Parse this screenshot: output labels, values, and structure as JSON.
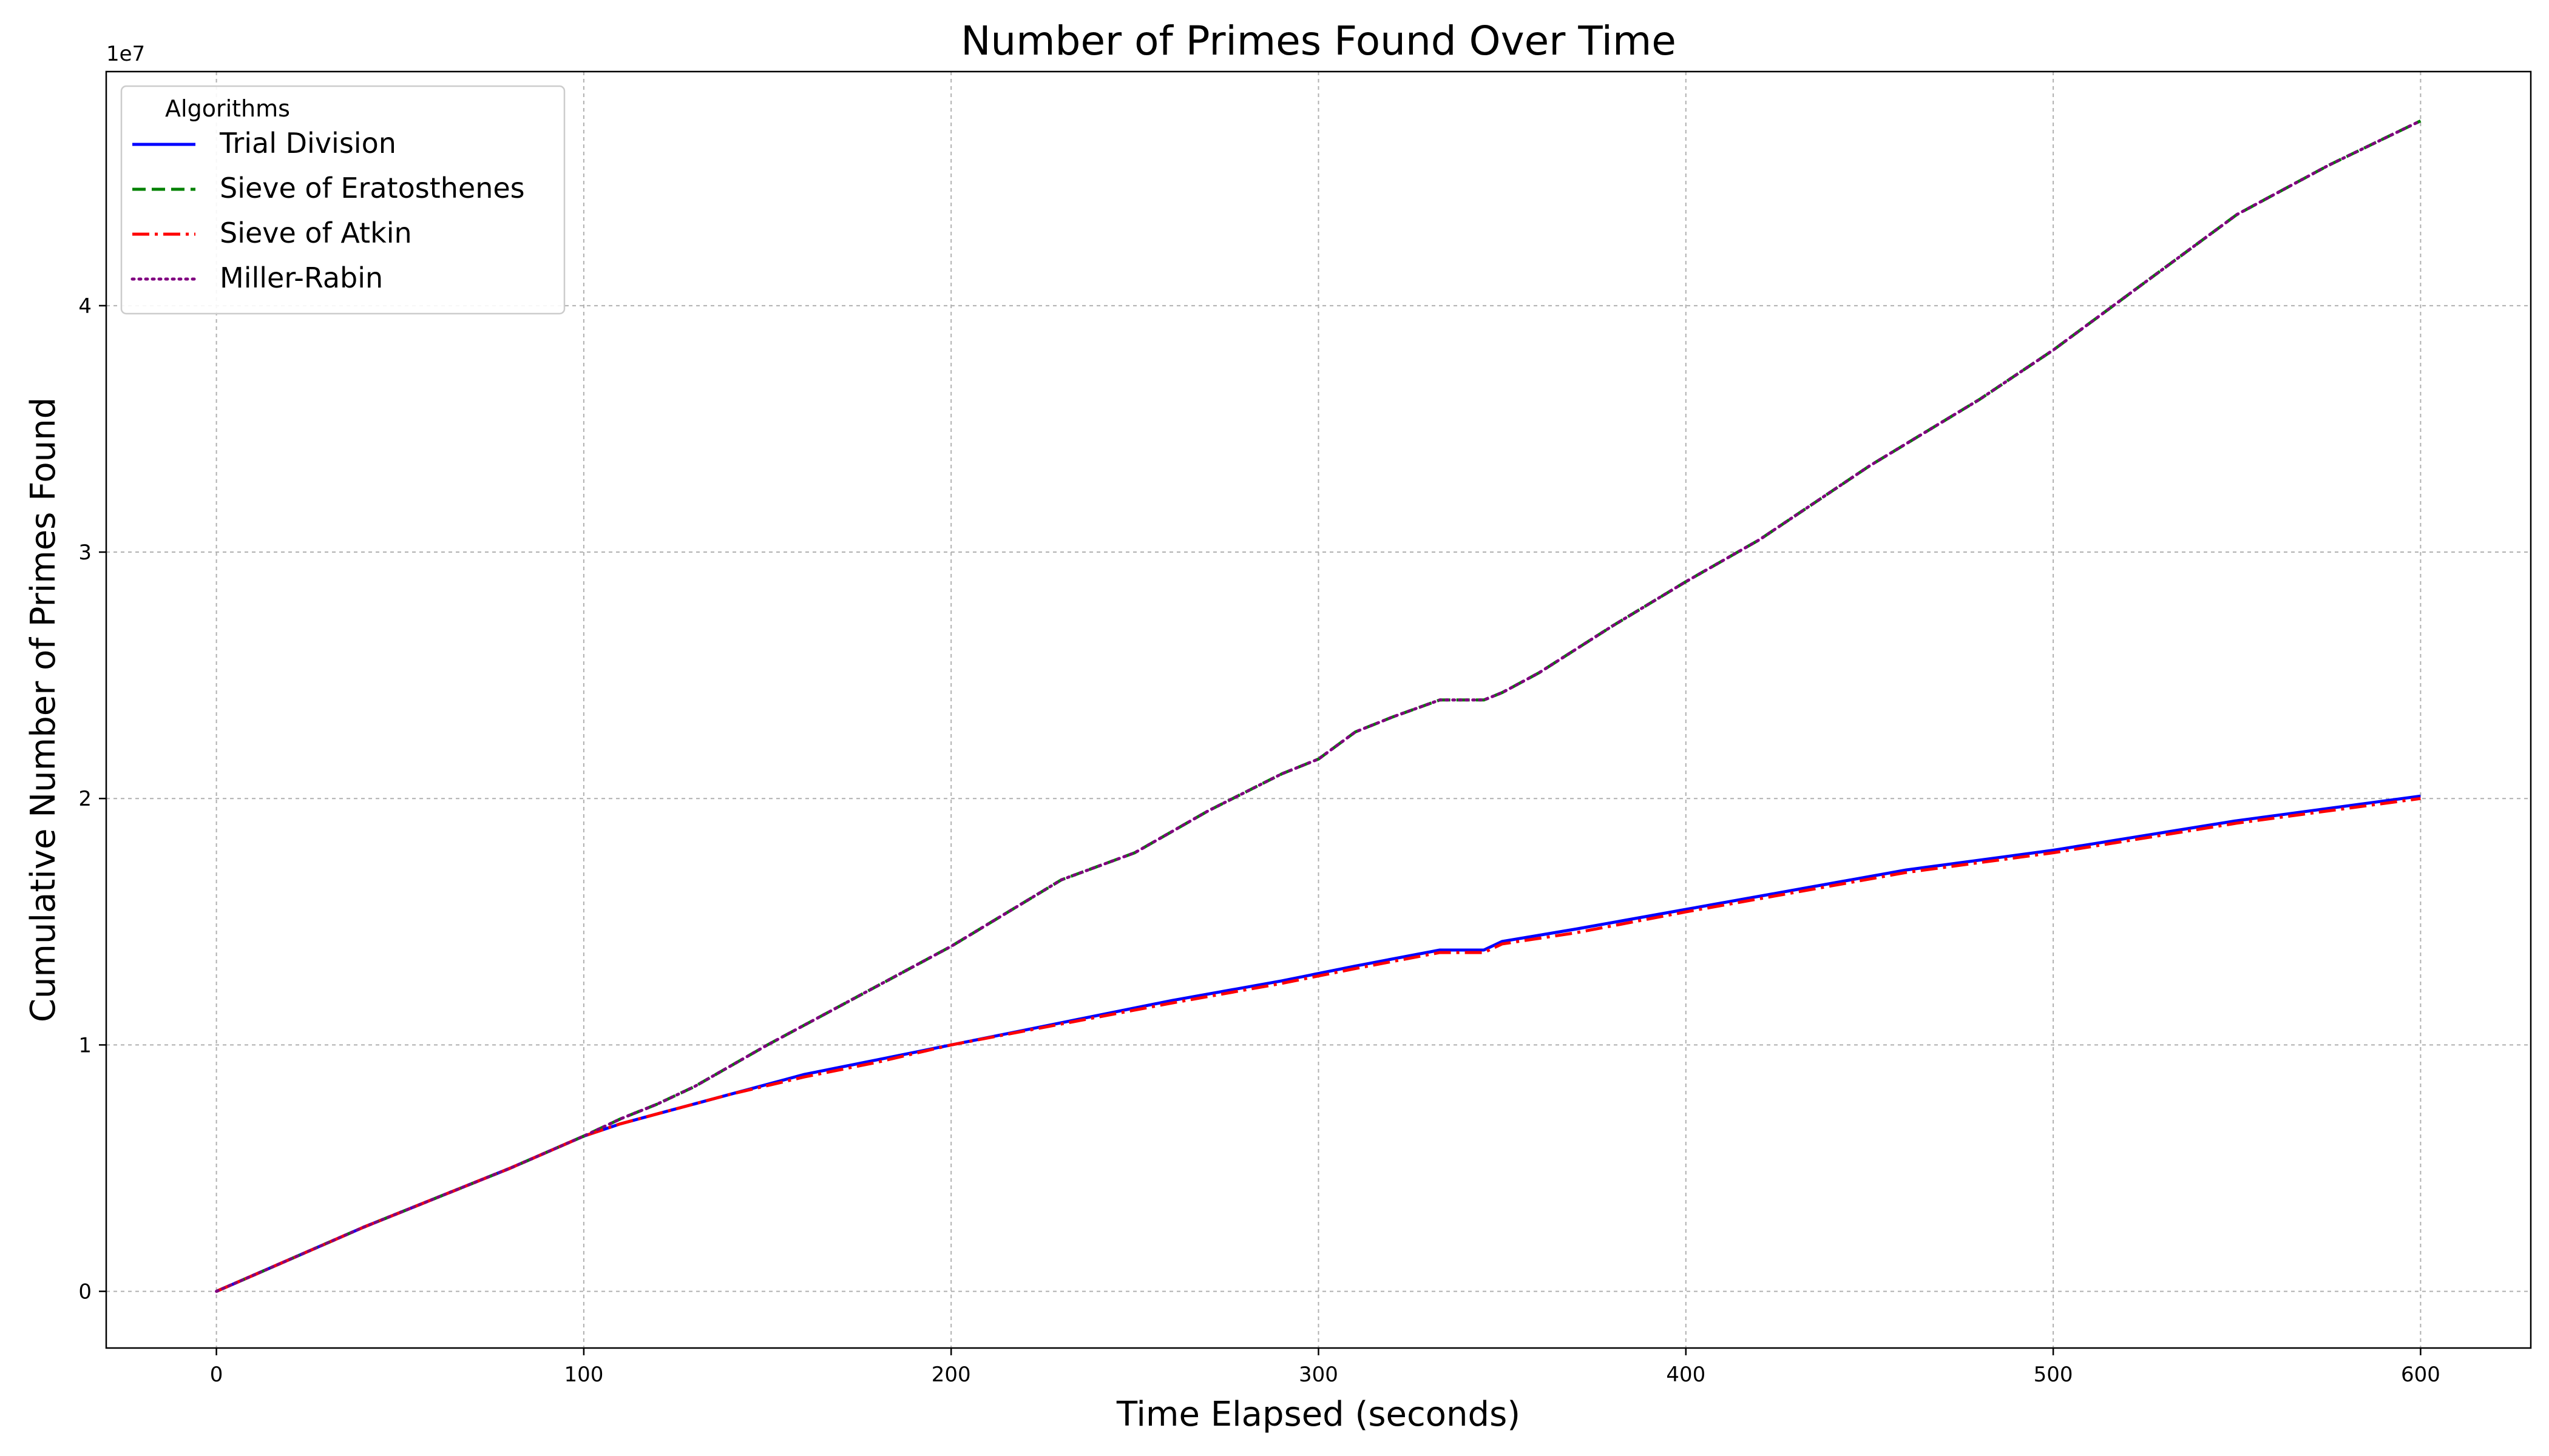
{
  "chart_data": {
    "type": "line",
    "title": "Number of Primes Found Over Time",
    "xlabel": "Time Elapsed (seconds)",
    "ylabel": "Cumulative Number of Primes Found",
    "y_offset_label": "1e7",
    "y_scale_factor": 10000000,
    "xlim": [
      -30,
      630
    ],
    "ylim": [
      -2300000,
      49500000
    ],
    "x_ticks": [
      0,
      100,
      200,
      300,
      400,
      500,
      600
    ],
    "y_ticks": [
      0,
      10000000,
      20000000,
      30000000,
      40000000
    ],
    "x_tick_labels": [
      "0",
      "100",
      "200",
      "300",
      "400",
      "500",
      "600"
    ],
    "y_tick_labels": [
      "0",
      "1",
      "2",
      "3",
      "4"
    ],
    "grid": true,
    "legend_title": "Algorithms",
    "legend_position": "top-left",
    "series": [
      {
        "name": "Trial Division",
        "color": "#0000ff",
        "style": "solid",
        "x": [
          0,
          20,
          40,
          60,
          80,
          100,
          110,
          120,
          140,
          160,
          180,
          200,
          230,
          260,
          290,
          310,
          333,
          345,
          350,
          370,
          400,
          430,
          460,
          500,
          550,
          600
        ],
        "y": [
          0,
          1300000,
          2600000,
          3800000,
          5000000,
          6300000,
          6800000,
          7200000,
          8000000,
          8800000,
          9400000,
          10000000,
          10900000,
          11800000,
          12600000,
          13200000,
          13850000,
          13850000,
          14200000,
          14700000,
          15500000,
          16300000,
          17100000,
          17900000,
          19100000,
          20100000
        ]
      },
      {
        "name": "Sieve of Eratosthenes",
        "color": "#008000",
        "style": "dashed",
        "x": [
          0,
          20,
          40,
          60,
          80,
          100,
          110,
          120,
          130,
          150,
          170,
          200,
          230,
          250,
          270,
          290,
          300,
          310,
          320,
          333,
          345,
          350,
          360,
          380,
          400,
          420,
          450,
          480,
          500,
          520,
          550,
          575,
          600
        ],
        "y": [
          0,
          1300000,
          2600000,
          3800000,
          5000000,
          6300000,
          7000000,
          7600000,
          8300000,
          10000000,
          11600000,
          14000000,
          16700000,
          17800000,
          19500000,
          21000000,
          21600000,
          22700000,
          23300000,
          24000000,
          24000000,
          24300000,
          25100000,
          27000000,
          28800000,
          30500000,
          33500000,
          36200000,
          38200000,
          40400000,
          43700000,
          45700000,
          47500000
        ]
      },
      {
        "name": "Sieve of Atkin",
        "color": "#ff0000",
        "style": "dashdot",
        "x": [
          0,
          20,
          40,
          60,
          80,
          100,
          110,
          120,
          140,
          160,
          180,
          200,
          230,
          260,
          290,
          310,
          333,
          345,
          350,
          370,
          400,
          430,
          460,
          500,
          550,
          600
        ],
        "y": [
          0,
          1300000,
          2600000,
          3800000,
          5000000,
          6300000,
          6800000,
          7200000,
          8000000,
          8700000,
          9300000,
          10000000,
          10850000,
          11700000,
          12500000,
          13100000,
          13750000,
          13750000,
          14100000,
          14550000,
          15400000,
          16200000,
          17000000,
          17800000,
          19000000,
          20000000
        ]
      },
      {
        "name": "Miller-Rabin",
        "color": "#800080",
        "style": "dotted",
        "x": [
          0,
          20,
          40,
          60,
          80,
          100,
          110,
          120,
          130,
          150,
          170,
          200,
          230,
          250,
          270,
          290,
          300,
          310,
          320,
          333,
          345,
          350,
          360,
          380,
          400,
          420,
          450,
          480,
          500,
          520,
          550,
          575,
          600
        ],
        "y": [
          0,
          1300000,
          2600000,
          3800000,
          5000000,
          6300000,
          7000000,
          7600000,
          8300000,
          10000000,
          11600000,
          14000000,
          16700000,
          17800000,
          19500000,
          21000000,
          21600000,
          22700000,
          23300000,
          24000000,
          24000000,
          24300000,
          25100000,
          27000000,
          28800000,
          30500000,
          33500000,
          36200000,
          38200000,
          40400000,
          43700000,
          45700000,
          47500000
        ]
      }
    ]
  }
}
